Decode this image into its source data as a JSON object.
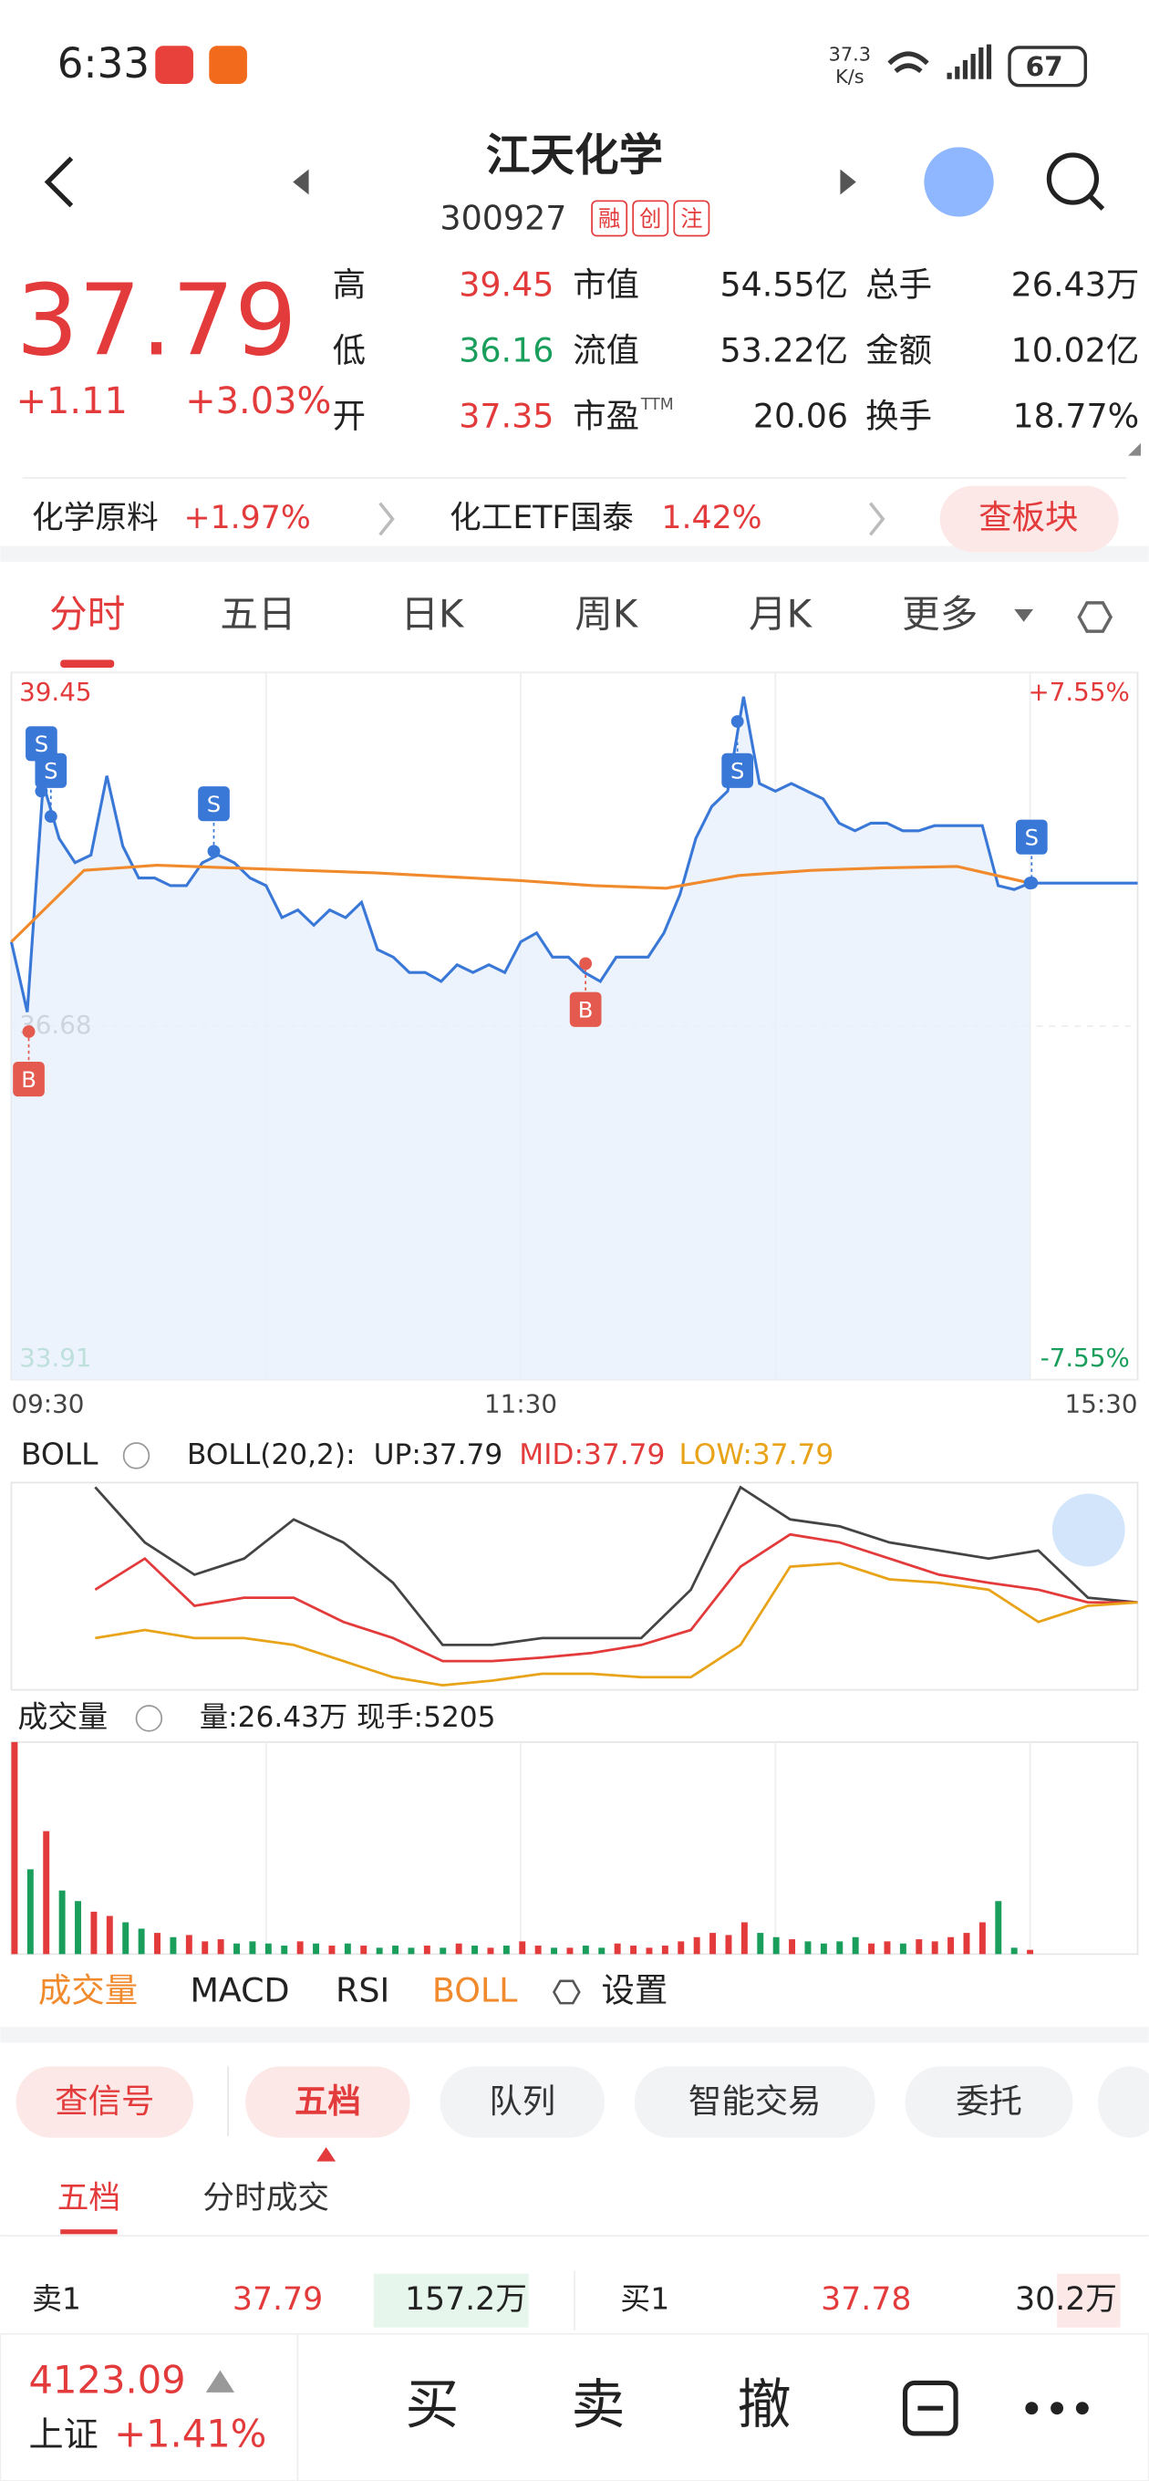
{
  "status": {
    "time": "6:33",
    "speed": "37.3",
    "speed_unit": "K/s",
    "battery": "67"
  },
  "header": {
    "title": "江天化学",
    "code": "300927",
    "badges": [
      "融",
      "创",
      "注"
    ]
  },
  "quote": {
    "price": "37.79",
    "change": "+1.11",
    "change_pct": "+3.03%",
    "stats": [
      [
        {
          "label": "高",
          "value": "39.45",
          "color": "#e33b3b"
        },
        {
          "label": "低",
          "value": "36.16",
          "color": "#1a9e5c"
        },
        {
          "label": "开",
          "value": "37.35",
          "color": "#e33b3b"
        }
      ],
      [
        {
          "label": "市值",
          "value": "54.55亿"
        },
        {
          "label": "流值",
          "value": "53.22亿"
        },
        {
          "label": "市盈",
          "sup": "TTM",
          "value": "20.06"
        }
      ],
      [
        {
          "label": "总手",
          "value": "26.43万"
        },
        {
          "label": "金额",
          "value": "10.02亿"
        },
        {
          "label": "换手",
          "value": "18.77%"
        }
      ]
    ]
  },
  "sectors": [
    {
      "name": "化学原料",
      "change": "+1.97%"
    },
    {
      "name": "化工ETF国泰",
      "change": "1.42%"
    }
  ],
  "sector_button": "查板块",
  "tabs": [
    "分时",
    "五日",
    "日K",
    "周K",
    "月K",
    "更多"
  ],
  "intraday": {
    "ylim": [
      33.91,
      39.45
    ],
    "yticks": [
      39.45,
      36.68,
      33.91
    ],
    "y2lim": [
      -7.55,
      7.55
    ],
    "y2ticks": [
      {
        "value": 7.55,
        "label": "+7.55%"
      },
      {
        "value": -7.55,
        "label": "-7.55%"
      }
    ],
    "xlabels": [
      "09:30",
      "11:30",
      "15:30"
    ],
    "price_color": "#3a78d8",
    "avg_color": "#f08a2c",
    "prices": [
      37.34,
      36.79,
      38.58,
      38.15,
      37.96,
      38.02,
      38.64,
      38.09,
      37.84,
      37.84,
      37.78,
      37.78,
      37.96,
      38.02,
      37.96,
      37.84,
      37.78,
      37.53,
      37.59,
      37.47,
      37.59,
      37.53,
      37.65,
      37.28,
      37.22,
      37.1,
      37.1,
      37.03,
      37.16,
      37.1,
      37.16,
      37.1,
      37.34,
      37.41,
      37.22,
      37.22,
      37.1,
      37.03,
      37.22,
      37.22,
      37.22,
      37.41,
      37.71,
      38.15,
      38.4,
      38.52,
      39.26,
      38.58,
      38.52,
      38.58,
      38.52,
      38.46,
      38.27,
      38.21,
      38.27,
      38.27,
      38.21,
      38.21,
      38.25,
      38.25,
      38.25,
      38.25,
      37.78,
      37.75,
      37.8
    ],
    "avg": [
      37.34,
      37.9,
      37.94,
      37.92,
      37.9,
      37.88,
      37.85,
      37.82,
      37.78,
      37.76,
      37.86,
      37.9,
      37.92,
      37.93,
      37.8
    ],
    "signals": [
      "S",
      "S",
      "S",
      "S",
      "S",
      "B",
      "B"
    ]
  },
  "boll": {
    "title": "BOLL",
    "params": "BOLL(20,2):",
    "up_label": "UP:37.79",
    "mid_label": "MID:37.79",
    "low_label": "LOW:37.79",
    "ylim": [
      37.0,
      38.8
    ],
    "up": [
      38.76,
      38.28,
      38.0,
      38.14,
      38.48,
      38.28,
      37.93,
      37.39,
      37.39,
      37.45,
      37.45,
      37.45,
      37.87,
      38.76,
      38.48,
      38.42,
      38.28,
      38.21,
      38.14,
      38.21,
      37.8,
      37.76
    ],
    "mid": [
      37.87,
      38.14,
      37.73,
      37.8,
      37.8,
      37.59,
      37.45,
      37.25,
      37.25,
      37.28,
      37.32,
      37.39,
      37.52,
      38.07,
      38.35,
      38.28,
      38.14,
      38.0,
      37.93,
      37.87,
      37.76,
      37.76
    ],
    "low": [
      37.45,
      37.52,
      37.45,
      37.45,
      37.39,
      37.25,
      37.11,
      37.04,
      37.08,
      37.14,
      37.14,
      37.11,
      37.11,
      37.39,
      38.07,
      38.1,
      37.96,
      37.93,
      37.87,
      37.59,
      37.73,
      37.76
    ]
  },
  "volume": {
    "title": "成交量",
    "summary": "量:26.43万 现手:5205",
    "ylim": [
      0,
      100
    ],
    "values": [
      100,
      40,
      58,
      30,
      25,
      20,
      18,
      15,
      12,
      10,
      8,
      9,
      6,
      7,
      5,
      6,
      5,
      4,
      6,
      5,
      4,
      5,
      4,
      3,
      4,
      3,
      4,
      3,
      5,
      4,
      3,
      4,
      6,
      4,
      3,
      3,
      4,
      3,
      5,
      4,
      3,
      4,
      6,
      8,
      10,
      9,
      15,
      10,
      8,
      7,
      6,
      5,
      6,
      8,
      5,
      6,
      5,
      7,
      6,
      8,
      10,
      15,
      25,
      3,
      2
    ]
  },
  "indicators": [
    "成交量",
    "MACD",
    "RSI",
    "BOLL",
    "设置"
  ],
  "actions": [
    "查信号",
    "五档",
    "队列",
    "智能交易",
    "委托"
  ],
  "subtabs": [
    "五档",
    "分时成交"
  ],
  "orderbook": {
    "ask": {
      "label": "卖1",
      "price": "37.79",
      "volume": "157.2万"
    },
    "bid": {
      "label": "买1",
      "price": "37.78",
      "volume": "30.2万"
    }
  },
  "footer": {
    "index_value": "4123.09",
    "index_name": "上证",
    "index_change": "+1.41%",
    "buttons": [
      "买",
      "卖",
      "撤"
    ]
  }
}
